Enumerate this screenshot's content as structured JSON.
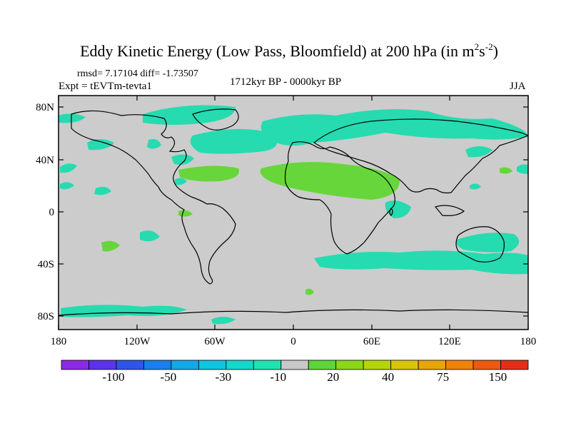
{
  "title": {
    "main": "Eddy Kinetic Energy (Low Pass, Bloomfield) at 200 hPa (in m",
    "sup1": "2",
    "mid": "s",
    "sup2": "-2",
    "end": ")"
  },
  "subtitle": {
    "stats": "rmsd= 7.17104 diff= -1.73507",
    "experiment": "Expt = tEVTm-tevta1",
    "period": "1712kyr BP - 0000kyr BP",
    "season": "JJA"
  },
  "axes": {
    "lat_labels": [
      "80N",
      "40N",
      "0",
      "40S",
      "80S"
    ],
    "lon_labels": [
      "180",
      "120W",
      "60W",
      "0",
      "60E",
      "120E",
      "180"
    ]
  },
  "colorbar": {
    "labels": [
      "-100",
      "-50",
      "-30",
      "-10",
      "20",
      "40",
      "75",
      "150"
    ],
    "colors": [
      "#8a2be2",
      "#5c33e6",
      "#2f55e6",
      "#1a7fe8",
      "#14a8e6",
      "#12c4de",
      "#16d6cc",
      "#22e2b2",
      "#c8c8c8",
      "#5fd43a",
      "#8cd61c",
      "#b4d410",
      "#d8c40c",
      "#e8a40c",
      "#ee820c",
      "#ea5a10",
      "#e0301a"
    ]
  },
  "colors": {
    "background_field": "#cccccc",
    "positive_anomaly": "#66d63a",
    "negative_anomaly": "#26dbb0",
    "coastline": "#000000"
  }
}
